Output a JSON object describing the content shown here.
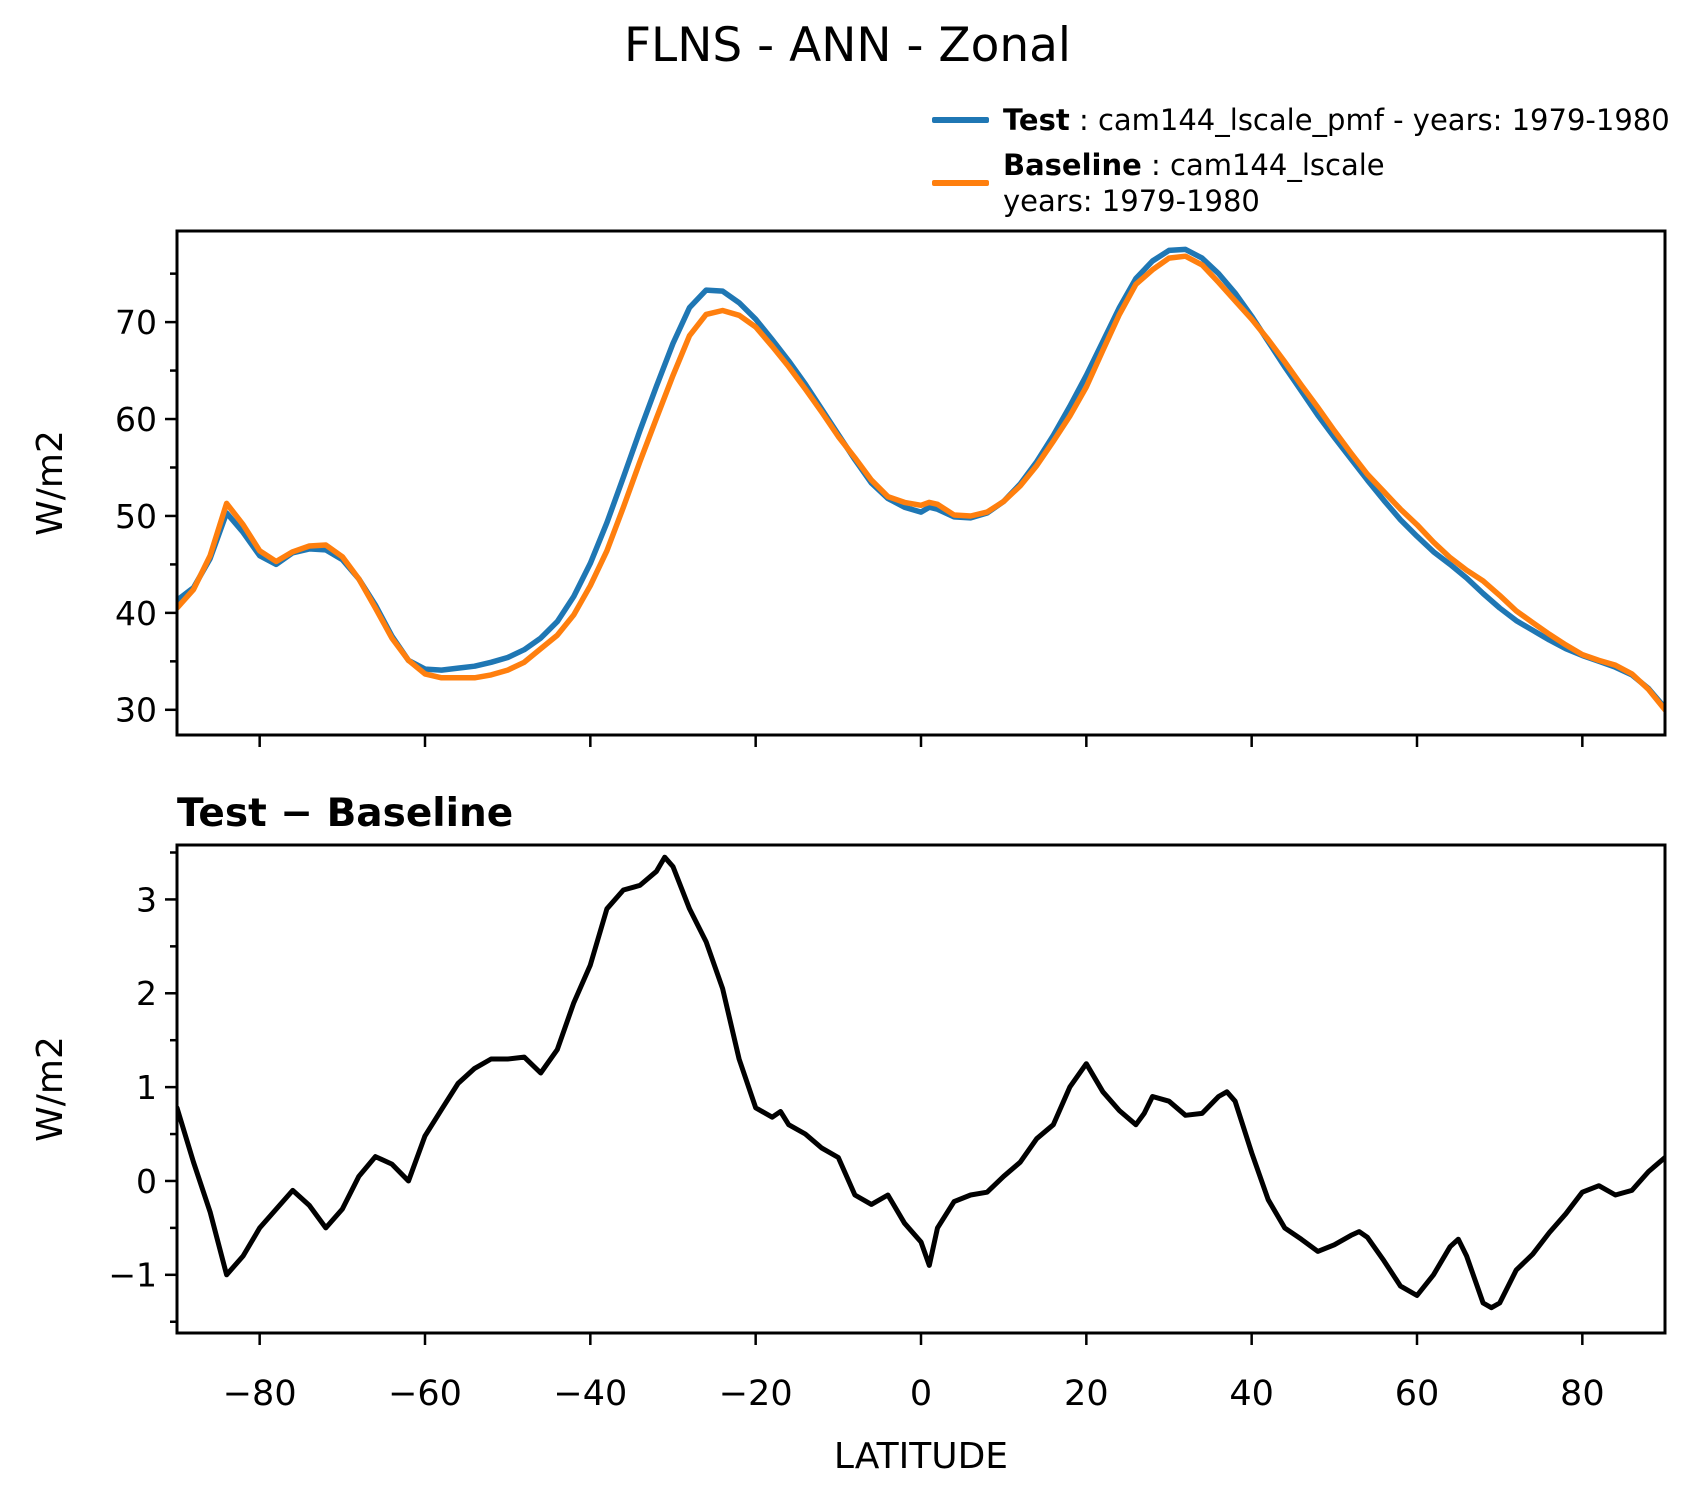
{
  "title": "FLNS - ANN - Zonal",
  "legend": {
    "test_label": "Test",
    "test_desc": " : cam144_lscale_pmf - years: 1979-1980",
    "baseline_label": "Baseline",
    "baseline_desc": " : cam144_lscale",
    "baseline_years": "years: 1979-1980"
  },
  "colors": {
    "test": "#1f77b4",
    "baseline": "#ff7f0e",
    "diff": "#000000",
    "axes": "#000000"
  },
  "chart_data": [
    {
      "type": "line",
      "panel": "top",
      "ylabel": "W/m2",
      "xlim": [
        -90,
        90
      ],
      "ylim": [
        27.4,
        79.4
      ],
      "yticks": [
        30,
        40,
        50,
        60,
        70
      ],
      "yticks_minor": [
        35,
        45,
        55,
        65,
        75
      ],
      "xticks": [
        -80,
        -60,
        -40,
        -20,
        0,
        20,
        40,
        60,
        80
      ],
      "grid": false,
      "legend_position": "upper-right-above-axes",
      "x": [
        -90,
        -88,
        -86,
        -84,
        -82,
        -80,
        -78,
        -76,
        -74,
        -72,
        -70,
        -68,
        -66,
        -64,
        -62,
        -60,
        -58,
        -56,
        -54,
        -52,
        -50,
        -48,
        -46,
        -44,
        -42,
        -40,
        -38,
        -36,
        -34,
        -32,
        -30,
        -28,
        -26,
        -24,
        -22,
        -20,
        -18,
        -16,
        -14,
        -12,
        -10,
        -8,
        -6,
        -4,
        -2,
        0,
        1,
        2,
        4,
        6,
        8,
        10,
        12,
        14,
        16,
        18,
        20,
        22,
        24,
        26,
        28,
        30,
        32,
        34,
        36,
        38,
        40,
        42,
        44,
        46,
        48,
        50,
        52,
        54,
        56,
        58,
        60,
        62,
        64,
        66,
        68,
        70,
        72,
        74,
        76,
        78,
        80,
        82,
        84,
        86,
        88,
        90
      ],
      "series": [
        {
          "name": "Test",
          "color_key": "test",
          "values": [
            41.3,
            42.6,
            45.6,
            50.3,
            48.3,
            45.9,
            45.0,
            46.2,
            46.6,
            46.5,
            45.5,
            43.5,
            40.8,
            37.6,
            35.1,
            34.2,
            34.1,
            34.3,
            34.5,
            34.9,
            35.4,
            36.2,
            37.4,
            39.1,
            41.7,
            45.1,
            49.3,
            54.0,
            58.8,
            63.4,
            67.8,
            71.5,
            73.3,
            73.2,
            72.0,
            70.3,
            68.2,
            66.0,
            63.6,
            61.0,
            58.4,
            55.8,
            53.4,
            51.8,
            50.9,
            50.4,
            50.9,
            50.7,
            49.9,
            49.8,
            50.3,
            51.5,
            53.3,
            55.6,
            58.3,
            61.3,
            64.5,
            68.0,
            71.5,
            74.5,
            76.3,
            77.4,
            77.5,
            76.6,
            75.0,
            73.0,
            70.6,
            68.0,
            65.4,
            62.9,
            60.4,
            58.1,
            55.9,
            53.7,
            51.6,
            49.6,
            47.9,
            46.3,
            45.0,
            43.6,
            42.0,
            40.5,
            39.2,
            38.2,
            37.2,
            36.3,
            35.6,
            35.0,
            34.4,
            33.6,
            32.2,
            30.2
          ]
        },
        {
          "name": "Baseline",
          "color_key": "baseline",
          "values": [
            40.5,
            42.4,
            45.9,
            51.3,
            49.1,
            46.4,
            45.3,
            46.3,
            46.9,
            47.0,
            45.8,
            43.5,
            40.5,
            37.4,
            35.1,
            33.7,
            33.3,
            33.3,
            33.3,
            33.6,
            34.1,
            34.9,
            36.3,
            37.7,
            39.8,
            42.8,
            46.4,
            50.9,
            55.6,
            60.1,
            64.5,
            68.6,
            70.8,
            71.2,
            70.7,
            69.5,
            67.5,
            65.4,
            63.1,
            60.7,
            58.2,
            56.0,
            53.7,
            52.0,
            51.4,
            51.1,
            51.4,
            51.2,
            50.1,
            50.0,
            50.4,
            51.5,
            53.1,
            55.2,
            57.7,
            60.3,
            63.3,
            67.1,
            70.8,
            73.9,
            75.4,
            76.6,
            76.8,
            75.9,
            74.1,
            72.2,
            70.3,
            68.2,
            65.9,
            63.5,
            61.2,
            58.8,
            56.5,
            54.3,
            52.5,
            50.7,
            49.1,
            47.3,
            45.7,
            44.4,
            43.3,
            41.8,
            40.2,
            39.0,
            37.8,
            36.7,
            35.7,
            35.1,
            34.6,
            33.7,
            32.1,
            30.0
          ]
        }
      ]
    },
    {
      "type": "line",
      "panel": "bottom",
      "title": "Test − Baseline",
      "ylabel": "W/m2",
      "xlabel": "LATITUDE",
      "xlim": [
        -90,
        90
      ],
      "ylim": [
        -1.62,
        3.58
      ],
      "yticks": [
        -1,
        0,
        1,
        2,
        3
      ],
      "yticks_minor": [
        -1.5,
        -0.5,
        0.5,
        1.5,
        2.5,
        3.5
      ],
      "xticks": [
        -80,
        -60,
        -40,
        -20,
        0,
        20,
        40,
        60,
        80
      ],
      "xticklabels": [
        "−80",
        "−60",
        "−40",
        "−20",
        "0",
        "20",
        "40",
        "60",
        "80"
      ],
      "grid": false,
      "x": [
        -90,
        -88,
        -86,
        -84,
        -82,
        -80,
        -78,
        -76,
        -74,
        -72,
        -70,
        -68,
        -66,
        -64,
        -62,
        -60,
        -58,
        -56,
        -54,
        -52,
        -50,
        -48,
        -46,
        -44,
        -42,
        -40,
        -38,
        -36,
        -34,
        -32,
        -31,
        -30,
        -28,
        -26,
        -24,
        -22,
        -20,
        -18,
        -17,
        -16,
        -14,
        -12,
        -10,
        -8,
        -6,
        -4,
        -2,
        0,
        1,
        2,
        4,
        6,
        8,
        10,
        12,
        14,
        16,
        18,
        20,
        22,
        24,
        26,
        27,
        28,
        30,
        32,
        34,
        36,
        37,
        38,
        40,
        42,
        44,
        46,
        48,
        50,
        52,
        53,
        54,
        56,
        58,
        60,
        62,
        64,
        65,
        66,
        68,
        69,
        70,
        72,
        74,
        76,
        78,
        80,
        82,
        84,
        86,
        88,
        90
      ],
      "series": [
        {
          "name": "Test − Baseline",
          "color_key": "diff",
          "values": [
            0.78,
            0.2,
            -0.33,
            -1.0,
            -0.8,
            -0.5,
            -0.3,
            -0.1,
            -0.26,
            -0.5,
            -0.3,
            0.05,
            0.26,
            0.18,
            0.0,
            0.48,
            0.76,
            1.04,
            1.2,
            1.3,
            1.3,
            1.32,
            1.15,
            1.4,
            1.9,
            2.3,
            2.9,
            3.1,
            3.15,
            3.3,
            3.45,
            3.35,
            2.9,
            2.55,
            2.05,
            1.3,
            0.78,
            0.68,
            0.74,
            0.6,
            0.5,
            0.35,
            0.25,
            -0.15,
            -0.25,
            -0.15,
            -0.45,
            -0.65,
            -0.9,
            -0.5,
            -0.22,
            -0.15,
            -0.12,
            0.05,
            0.2,
            0.45,
            0.6,
            1.0,
            1.25,
            0.95,
            0.75,
            0.6,
            0.72,
            0.9,
            0.85,
            0.7,
            0.72,
            0.9,
            0.95,
            0.85,
            0.3,
            -0.2,
            -0.5,
            -0.62,
            -0.75,
            -0.68,
            -0.58,
            -0.54,
            -0.6,
            -0.85,
            -1.12,
            -1.22,
            -1.0,
            -0.7,
            -0.62,
            -0.8,
            -1.3,
            -1.35,
            -1.3,
            -0.95,
            -0.78,
            -0.55,
            -0.35,
            -0.12,
            -0.05,
            -0.15,
            -0.1,
            0.1,
            0.25
          ]
        }
      ]
    }
  ]
}
